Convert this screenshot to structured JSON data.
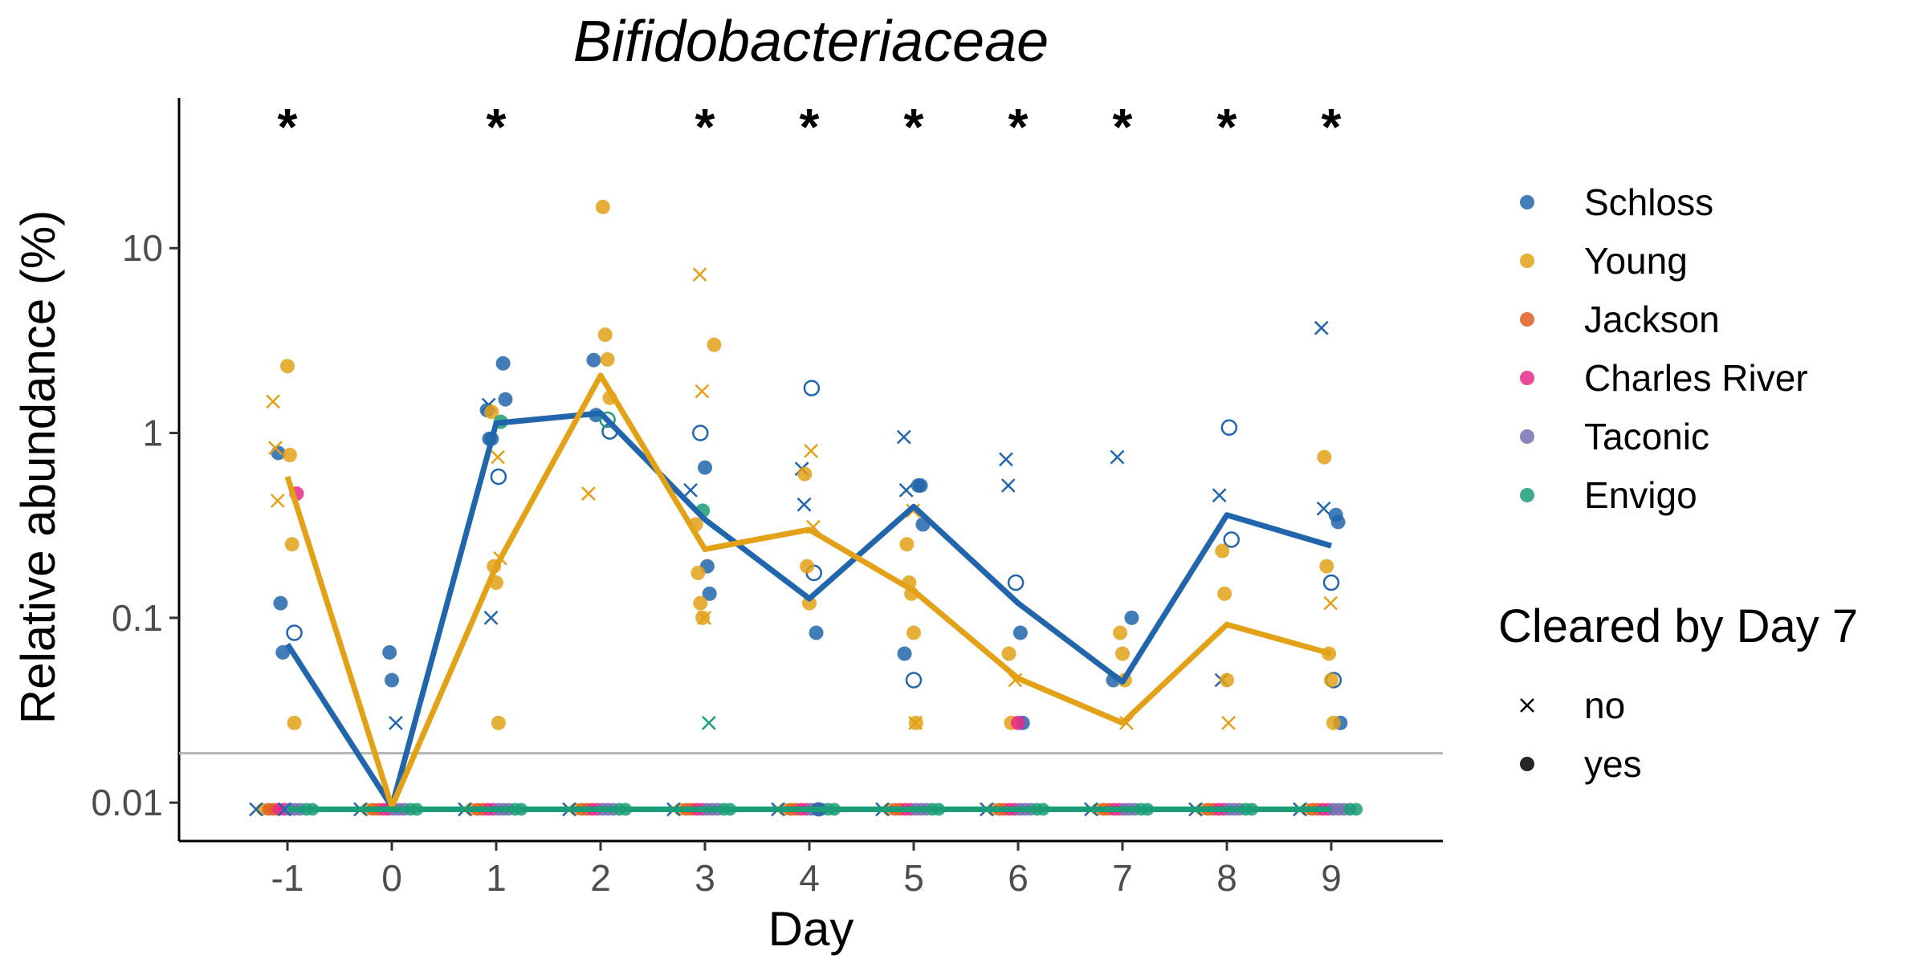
{
  "chart_data": {
    "type": "scatter",
    "title": "Bifidobacteriaceae",
    "xlabel": "Day",
    "ylabel": "Relative abundance (%)",
    "x_ticks": [
      "-1",
      "0",
      "1",
      "2",
      "3",
      "4",
      "5",
      "6",
      "7",
      "8",
      "9"
    ],
    "y_ticks": [
      {
        "value": 0.01,
        "label": "0.01"
      },
      {
        "value": 0.1,
        "label": "0.1"
      },
      {
        "value": 1,
        "label": "1"
      },
      {
        "value": 10,
        "label": "10"
      }
    ],
    "y_scale": "log10",
    "xlim": [
      -2,
      10
    ],
    "ylim": [
      0.0062,
      65
    ],
    "limit_of_detection": 0.0185,
    "significance_marker": "*",
    "significant_days": [
      -1,
      1,
      3,
      4,
      5,
      6,
      7,
      8,
      9
    ],
    "legend_vendor": [
      {
        "name": "Schloss",
        "color": "#2166ac"
      },
      {
        "name": "Young",
        "color": "#e2a116"
      },
      {
        "name": "Jackson",
        "color": "#e05d1f"
      },
      {
        "name": "Charles River",
        "color": "#e7298a"
      },
      {
        "name": "Taconic",
        "color": "#7570b3"
      },
      {
        "name": "Envigo",
        "color": "#1b9e77"
      }
    ],
    "legend_cleared_title": "Cleared by Day 7",
    "legend_cleared": [
      {
        "label": "no",
        "shape": "x"
      },
      {
        "label": "yes",
        "shape": "dot"
      }
    ],
    "median_lines": [
      {
        "vendor": "Schloss",
        "color": "#2166ac",
        "x": [
          -1,
          0,
          1,
          2,
          3,
          4,
          5,
          6,
          7,
          8,
          9
        ],
        "y": [
          0.072,
          0.0095,
          1.13,
          1.28,
          0.34,
          0.127,
          0.4,
          0.12,
          0.045,
          0.36,
          0.245
        ]
      },
      {
        "vendor": "Young",
        "color": "#e2a116",
        "x": [
          -1,
          0,
          1,
          2,
          3,
          4,
          5,
          6,
          7,
          8,
          9
        ],
        "y": [
          0.58,
          0.0095,
          0.19,
          2.05,
          0.235,
          0.3,
          0.14,
          0.047,
          0.027,
          0.092,
          0.064
        ]
      },
      {
        "vendor": "Envigo",
        "color": "#1b9e77",
        "x": [
          -1,
          0,
          1,
          2,
          3,
          4,
          5,
          6,
          7,
          8,
          9
        ],
        "y": [
          0.0092,
          0.0092,
          0.0092,
          0.0092,
          0.0092,
          0.0092,
          0.0092,
          0.0092,
          0.0092,
          0.0092,
          0.0092
        ]
      }
    ],
    "points": [
      {
        "vendor": "Schloss",
        "day": -1,
        "values": [
          0.78,
          0.12,
          0.065
        ],
        "hollow": [
          0.083
        ],
        "cross": [
          0.0092
        ]
      },
      {
        "vendor": "Young",
        "day": -1,
        "values": [
          2.3,
          0.76,
          0.25,
          0.027
        ],
        "hollow": [],
        "cross": [
          1.48,
          0.83,
          0.43
        ]
      },
      {
        "vendor": "Charles River",
        "day": -1,
        "values": [
          0.47
        ],
        "hollow": [],
        "cross": []
      },
      {
        "vendor": "Schloss",
        "day": 0,
        "values": [
          0.065,
          0.046
        ],
        "hollow": [],
        "cross": [
          0.027
        ]
      },
      {
        "vendor": "Schloss",
        "day": 1,
        "values": [
          2.38,
          1.52,
          1.33,
          0.93,
          0.93
        ],
        "hollow": [
          0.58
        ],
        "cross": [
          1.42,
          0.1
        ]
      },
      {
        "vendor": "Young",
        "day": 1,
        "values": [
          1.3,
          0.19,
          0.155,
          0.027
        ],
        "hollow": [],
        "cross": [
          0.74,
          0.21
        ]
      },
      {
        "vendor": "Envigo",
        "day": 1,
        "values": [
          1.15
        ],
        "hollow": [],
        "cross": []
      },
      {
        "vendor": "Schloss",
        "day": 2,
        "values": [
          2.48,
          1.25
        ],
        "hollow": [
          1.02
        ],
        "cross": []
      },
      {
        "vendor": "Young",
        "day": 2,
        "values": [
          16.7,
          3.4,
          2.5,
          1.55
        ],
        "hollow": [],
        "cross": [
          0.47
        ]
      },
      {
        "vendor": "Envigo",
        "day": 2,
        "values": [],
        "hollow": [
          1.18
        ],
        "cross": []
      },
      {
        "vendor": "Schloss",
        "day": 3,
        "values": [
          0.65,
          0.19,
          0.135
        ],
        "hollow": [
          1.0
        ],
        "cross": [
          0.49
        ]
      },
      {
        "vendor": "Young",
        "day": 3,
        "values": [
          3.0,
          0.32,
          0.175,
          0.12,
          0.1
        ],
        "hollow": [],
        "cross": [
          7.2,
          1.68,
          0.1
        ]
      },
      {
        "vendor": "Envigo",
        "day": 3,
        "values": [
          0.38
        ],
        "hollow": [],
        "cross": [
          0.027
        ]
      },
      {
        "vendor": "Schloss",
        "day": 4,
        "values": [
          0.083,
          0.0092
        ],
        "hollow": [
          1.75,
          0.175
        ],
        "cross": [
          0.64,
          0.41
        ]
      },
      {
        "vendor": "Young",
        "day": 4,
        "values": [
          0.6,
          0.19,
          0.12
        ],
        "hollow": [],
        "cross": [
          0.8,
          0.31
        ]
      },
      {
        "vendor": "Schloss",
        "day": 5,
        "values": [
          0.52,
          0.52,
          0.32,
          0.064
        ],
        "hollow": [
          0.046
        ],
        "cross": [
          0.95,
          0.49
        ]
      },
      {
        "vendor": "Young",
        "day": 5,
        "values": [
          0.25,
          0.155,
          0.135,
          0.083,
          0.027
        ],
        "hollow": [],
        "cross": [
          0.38,
          0.027
        ]
      },
      {
        "vendor": "Schloss",
        "day": 6,
        "values": [
          0.083,
          0.027
        ],
        "hollow": [
          0.155
        ],
        "cross": [
          0.72,
          0.52
        ]
      },
      {
        "vendor": "Young",
        "day": 6,
        "values": [
          0.064,
          0.027
        ],
        "hollow": [],
        "cross": [
          0.046
        ]
      },
      {
        "vendor": "Charles River",
        "day": 6,
        "values": [
          0.027
        ],
        "hollow": [],
        "cross": []
      },
      {
        "vendor": "Schloss",
        "day": 7,
        "values": [
          0.1,
          0.046
        ],
        "hollow": [],
        "cross": [
          0.74
        ]
      },
      {
        "vendor": "Young",
        "day": 7,
        "values": [
          0.083,
          0.064,
          0.046
        ],
        "hollow": [],
        "cross": [
          0.027
        ]
      },
      {
        "vendor": "Schloss",
        "day": 8,
        "values": [],
        "hollow": [
          1.07,
          0.265
        ],
        "cross": [
          0.46,
          0.046
        ]
      },
      {
        "vendor": "Young",
        "day": 8,
        "values": [
          0.23,
          0.135,
          0.046
        ],
        "hollow": [],
        "cross": [
          0.027
        ]
      },
      {
        "vendor": "Schloss",
        "day": 9,
        "values": [
          0.36,
          0.33,
          0.027
        ],
        "hollow": [
          0.155,
          0.046
        ],
        "cross": [
          3.7,
          0.39
        ]
      },
      {
        "vendor": "Young",
        "day": 9,
        "values": [
          0.74,
          0.19,
          0.064,
          0.046,
          0.027
        ],
        "hollow": [],
        "cross": [
          0.12
        ]
      }
    ],
    "baseline_dots": {
      "value": 0.0092,
      "per_day_pattern": [
        {
          "vendor": "Young",
          "offset": -0.24
        },
        {
          "vendor": "Jackson",
          "offset": -0.18
        },
        {
          "vendor": "Jackson",
          "offset": -0.13
        },
        {
          "vendor": "Charles River",
          "offset": -0.08
        },
        {
          "vendor": "Charles River",
          "offset": -0.03
        },
        {
          "vendor": "Taconic",
          "offset": 0.02
        },
        {
          "vendor": "Taconic",
          "offset": 0.07
        },
        {
          "vendor": "Taconic",
          "offset": 0.12
        },
        {
          "vendor": "Envigo",
          "offset": 0.18
        },
        {
          "vendor": "Envigo",
          "offset": 0.24
        }
      ]
    }
  }
}
